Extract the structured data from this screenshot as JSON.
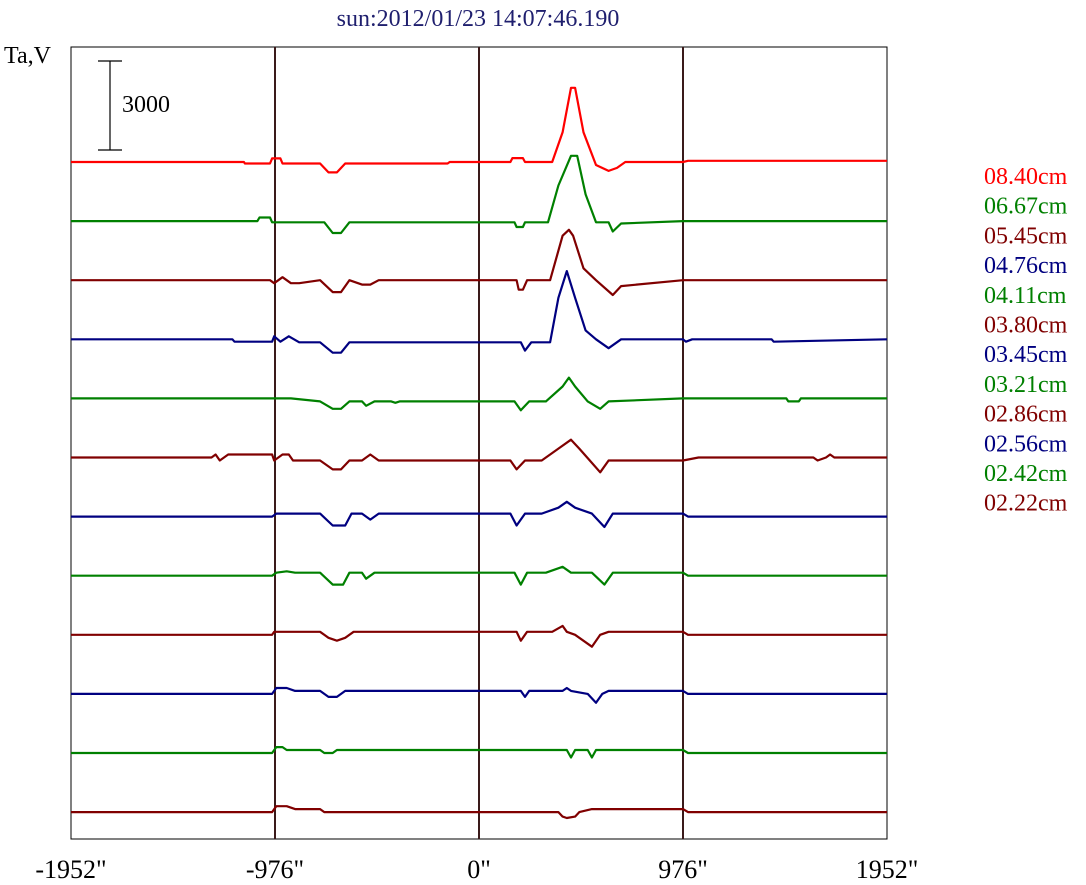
{
  "chart_data": {
    "type": "line",
    "title": "sun:2012/01/23 14:07:46.190",
    "ylabel": "Ta,V",
    "scale_bar_label": "3000",
    "scale_bar_value": 3000,
    "x_ticks": [
      {
        "value": -1952,
        "label": "-1952\""
      },
      {
        "value": -976,
        "label": "-976\""
      },
      {
        "value": 0,
        "label": "0\""
      },
      {
        "value": 976,
        "label": "976\""
      },
      {
        "value": 1952,
        "label": "1952\""
      }
    ],
    "xlim": [
      -1952,
      1952
    ],
    "vertical_lines": [
      -976,
      0,
      976
    ],
    "vertical_line_color": "#3a1a1a",
    "legend_position": "right",
    "series": [
      {
        "name": "08.40cm",
        "color": "#ff0000",
        "points": [
          [
            -1952,
            0
          ],
          [
            -1125,
            0
          ],
          [
            -1120,
            -50
          ],
          [
            -1000,
            -50
          ],
          [
            -990,
            120
          ],
          [
            -950,
            120
          ],
          [
            -940,
            -50
          ],
          [
            -760,
            -50
          ],
          [
            -720,
            -350
          ],
          [
            -680,
            -350
          ],
          [
            -640,
            -50
          ],
          [
            -150,
            -50
          ],
          [
            -140,
            0
          ],
          [
            150,
            0
          ],
          [
            160,
            130
          ],
          [
            210,
            130
          ],
          [
            220,
            0
          ],
          [
            350,
            0
          ],
          [
            400,
            1000
          ],
          [
            440,
            2500
          ],
          [
            460,
            2500
          ],
          [
            500,
            1000
          ],
          [
            560,
            -100
          ],
          [
            620,
            -300
          ],
          [
            660,
            -200
          ],
          [
            700,
            0
          ],
          [
            976,
            0
          ],
          [
            1000,
            40
          ],
          [
            1952,
            40
          ]
        ]
      },
      {
        "name": "06.67cm",
        "color": "#008000",
        "points": [
          [
            -1952,
            0
          ],
          [
            -1060,
            0
          ],
          [
            -1050,
            120
          ],
          [
            -1000,
            120
          ],
          [
            -990,
            -40
          ],
          [
            -740,
            -40
          ],
          [
            -700,
            -400
          ],
          [
            -660,
            -400
          ],
          [
            -620,
            -40
          ],
          [
            170,
            -40
          ],
          [
            180,
            -200
          ],
          [
            210,
            -200
          ],
          [
            220,
            -40
          ],
          [
            330,
            -40
          ],
          [
            380,
            1200
          ],
          [
            440,
            2200
          ],
          [
            470,
            2200
          ],
          [
            510,
            900
          ],
          [
            560,
            -40
          ],
          [
            620,
            -40
          ],
          [
            640,
            -350
          ],
          [
            680,
            -80
          ],
          [
            976,
            0
          ],
          [
            1952,
            0
          ]
        ]
      },
      {
        "name": "05.45cm",
        "color": "#800000",
        "points": [
          [
            -1952,
            0
          ],
          [
            -1000,
            0
          ],
          [
            -980,
            -100
          ],
          [
            -940,
            100
          ],
          [
            -900,
            -100
          ],
          [
            -860,
            -100
          ],
          [
            -760,
            0
          ],
          [
            -700,
            -400
          ],
          [
            -660,
            -400
          ],
          [
            -620,
            0
          ],
          [
            -560,
            -150
          ],
          [
            -520,
            -150
          ],
          [
            -480,
            0
          ],
          [
            180,
            0
          ],
          [
            190,
            -320
          ],
          [
            210,
            -320
          ],
          [
            230,
            0
          ],
          [
            340,
            0
          ],
          [
            400,
            1500
          ],
          [
            430,
            1700
          ],
          [
            450,
            1500
          ],
          [
            500,
            400
          ],
          [
            560,
            0
          ],
          [
            640,
            -500
          ],
          [
            680,
            -200
          ],
          [
            976,
            0
          ],
          [
            1952,
            0
          ]
        ]
      },
      {
        "name": "04.76cm",
        "color": "#000080",
        "points": [
          [
            -1952,
            0
          ],
          [
            -1180,
            0
          ],
          [
            -1170,
            -80
          ],
          [
            -990,
            -80
          ],
          [
            -980,
            100
          ],
          [
            -950,
            -80
          ],
          [
            -910,
            100
          ],
          [
            -860,
            -100
          ],
          [
            -760,
            -100
          ],
          [
            -700,
            -450
          ],
          [
            -660,
            -450
          ],
          [
            -620,
            -100
          ],
          [
            200,
            -100
          ],
          [
            220,
            -380
          ],
          [
            250,
            -100
          ],
          [
            340,
            -100
          ],
          [
            380,
            1400
          ],
          [
            420,
            2300
          ],
          [
            460,
            1400
          ],
          [
            510,
            300
          ],
          [
            560,
            0
          ],
          [
            620,
            -300
          ],
          [
            680,
            0
          ],
          [
            976,
            0
          ],
          [
            990,
            -80
          ],
          [
            1020,
            0
          ],
          [
            1400,
            0
          ],
          [
            1410,
            -80
          ],
          [
            1952,
            0
          ]
        ]
      },
      {
        "name": "04.11cm",
        "color": "#008000",
        "points": [
          [
            -1952,
            0
          ],
          [
            -900,
            0
          ],
          [
            -760,
            -100
          ],
          [
            -700,
            -350
          ],
          [
            -660,
            -350
          ],
          [
            -620,
            -100
          ],
          [
            -560,
            -100
          ],
          [
            -540,
            -250
          ],
          [
            -500,
            -100
          ],
          [
            -420,
            -100
          ],
          [
            -400,
            -150
          ],
          [
            -380,
            -100
          ],
          [
            170,
            -100
          ],
          [
            200,
            -400
          ],
          [
            240,
            -100
          ],
          [
            320,
            -100
          ],
          [
            400,
            400
          ],
          [
            430,
            700
          ],
          [
            460,
            400
          ],
          [
            520,
            -100
          ],
          [
            580,
            -350
          ],
          [
            620,
            -100
          ],
          [
            976,
            0
          ],
          [
            1470,
            0
          ],
          [
            1480,
            -100
          ],
          [
            1530,
            -100
          ],
          [
            1540,
            0
          ],
          [
            1952,
            0
          ]
        ]
      },
      {
        "name": "03.80cm",
        "color": "#800000",
        "points": [
          [
            -1952,
            0
          ],
          [
            -1280,
            0
          ],
          [
            -1260,
            100
          ],
          [
            -1240,
            -100
          ],
          [
            -1200,
            100
          ],
          [
            -990,
            100
          ],
          [
            -980,
            -100
          ],
          [
            -940,
            100
          ],
          [
            -910,
            100
          ],
          [
            -890,
            -100
          ],
          [
            -760,
            -100
          ],
          [
            -700,
            -400
          ],
          [
            -660,
            -400
          ],
          [
            -620,
            -100
          ],
          [
            -560,
            -100
          ],
          [
            -520,
            100
          ],
          [
            -480,
            -100
          ],
          [
            -440,
            -100
          ],
          [
            150,
            -100
          ],
          [
            180,
            -400
          ],
          [
            220,
            -100
          ],
          [
            300,
            -100
          ],
          [
            380,
            300
          ],
          [
            440,
            600
          ],
          [
            480,
            300
          ],
          [
            530,
            -100
          ],
          [
            580,
            -500
          ],
          [
            620,
            -100
          ],
          [
            976,
            -100
          ],
          [
            1050,
            0
          ],
          [
            1600,
            0
          ],
          [
            1620,
            -100
          ],
          [
            1660,
            0
          ],
          [
            1680,
            100
          ],
          [
            1700,
            0
          ],
          [
            1952,
            0
          ]
        ]
      },
      {
        "name": "03.45cm",
        "color": "#000080",
        "points": [
          [
            -1952,
            0
          ],
          [
            -990,
            0
          ],
          [
            -970,
            100
          ],
          [
            -760,
            100
          ],
          [
            -700,
            -300
          ],
          [
            -640,
            -300
          ],
          [
            -610,
            100
          ],
          [
            -560,
            100
          ],
          [
            -520,
            -100
          ],
          [
            -480,
            100
          ],
          [
            -440,
            100
          ],
          [
            150,
            100
          ],
          [
            180,
            -300
          ],
          [
            220,
            100
          ],
          [
            300,
            100
          ],
          [
            380,
            300
          ],
          [
            420,
            500
          ],
          [
            460,
            300
          ],
          [
            540,
            100
          ],
          [
            600,
            -350
          ],
          [
            640,
            100
          ],
          [
            976,
            100
          ],
          [
            1000,
            0
          ],
          [
            1952,
            0
          ]
        ]
      },
      {
        "name": "03.21cm",
        "color": "#008000",
        "points": [
          [
            -1952,
            0
          ],
          [
            -990,
            0
          ],
          [
            -970,
            100
          ],
          [
            -920,
            150
          ],
          [
            -880,
            100
          ],
          [
            -760,
            100
          ],
          [
            -700,
            -300
          ],
          [
            -650,
            -300
          ],
          [
            -620,
            100
          ],
          [
            -560,
            100
          ],
          [
            -540,
            -100
          ],
          [
            -500,
            100
          ],
          [
            -440,
            100
          ],
          [
            170,
            100
          ],
          [
            200,
            -300
          ],
          [
            230,
            100
          ],
          [
            320,
            100
          ],
          [
            400,
            300
          ],
          [
            440,
            100
          ],
          [
            540,
            100
          ],
          [
            600,
            -300
          ],
          [
            640,
            100
          ],
          [
            976,
            100
          ],
          [
            1000,
            0
          ],
          [
            1952,
            0
          ]
        ]
      },
      {
        "name": "02.86cm",
        "color": "#800000",
        "points": [
          [
            -1952,
            0
          ],
          [
            -990,
            0
          ],
          [
            -980,
            100
          ],
          [
            -760,
            100
          ],
          [
            -720,
            -100
          ],
          [
            -680,
            -200
          ],
          [
            -640,
            -100
          ],
          [
            -600,
            100
          ],
          [
            180,
            100
          ],
          [
            200,
            -200
          ],
          [
            230,
            100
          ],
          [
            350,
            100
          ],
          [
            400,
            300
          ],
          [
            420,
            100
          ],
          [
            460,
            0
          ],
          [
            540,
            -400
          ],
          [
            580,
            0
          ],
          [
            620,
            100
          ],
          [
            976,
            100
          ],
          [
            1000,
            0
          ],
          [
            1952,
            0
          ]
        ]
      },
      {
        "name": "02.56cm",
        "color": "#000080",
        "points": [
          [
            -1952,
            0
          ],
          [
            -990,
            0
          ],
          [
            -970,
            200
          ],
          [
            -920,
            200
          ],
          [
            -880,
            100
          ],
          [
            -760,
            100
          ],
          [
            -720,
            -100
          ],
          [
            -680,
            -100
          ],
          [
            -640,
            100
          ],
          [
            -600,
            100
          ],
          [
            200,
            100
          ],
          [
            220,
            -100
          ],
          [
            240,
            100
          ],
          [
            400,
            100
          ],
          [
            420,
            200
          ],
          [
            440,
            100
          ],
          [
            520,
            0
          ],
          [
            560,
            -300
          ],
          [
            590,
            0
          ],
          [
            620,
            100
          ],
          [
            976,
            100
          ],
          [
            1000,
            0
          ],
          [
            1952,
            0
          ]
        ]
      },
      {
        "name": "02.42cm",
        "color": "#008000",
        "points": [
          [
            -1952,
            0
          ],
          [
            -990,
            0
          ],
          [
            -970,
            200
          ],
          [
            -940,
            200
          ],
          [
            -920,
            100
          ],
          [
            -760,
            100
          ],
          [
            -740,
            0
          ],
          [
            -700,
            0
          ],
          [
            -680,
            100
          ],
          [
            -600,
            100
          ],
          [
            420,
            100
          ],
          [
            440,
            -150
          ],
          [
            460,
            100
          ],
          [
            520,
            100
          ],
          [
            540,
            -150
          ],
          [
            560,
            100
          ],
          [
            976,
            100
          ],
          [
            1000,
            0
          ],
          [
            1952,
            0
          ]
        ]
      },
      {
        "name": "02.22cm",
        "color": "#800000",
        "points": [
          [
            -1952,
            0
          ],
          [
            -990,
            0
          ],
          [
            -970,
            200
          ],
          [
            -920,
            200
          ],
          [
            -880,
            100
          ],
          [
            -760,
            100
          ],
          [
            -740,
            0
          ],
          [
            380,
            0
          ],
          [
            400,
            -150
          ],
          [
            420,
            -200
          ],
          [
            460,
            -150
          ],
          [
            480,
            0
          ],
          [
            540,
            100
          ],
          [
            976,
            100
          ],
          [
            1000,
            0
          ],
          [
            1952,
            0
          ]
        ]
      }
    ]
  }
}
